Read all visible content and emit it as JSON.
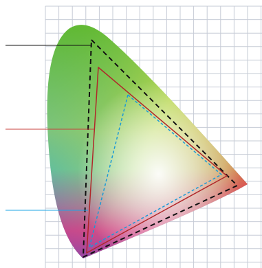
{
  "diagram": {
    "kind": "chromaticity-gamut-comparison",
    "gamuts": [
      {
        "id": "widest",
        "line_style": "dashed",
        "color": "#111111",
        "leader_color": "#111111"
      },
      {
        "id": "middle",
        "line_style": "solid",
        "color": "#b0272a",
        "leader_color": "#c8403e"
      },
      {
        "id": "narrow",
        "line_style": "dashed",
        "color": "#1a9ad6",
        "leader_color": "#1ea5e6"
      }
    ],
    "grid": {
      "visible": true,
      "color": "#c6cbd6"
    },
    "locus_colors": {
      "green": "#5fb82f",
      "yellow": "#f2ea3a",
      "red": "#e52532",
      "magenta": "#e0288a",
      "blue": "#3a4fc0",
      "cyan": "#2fb2e6"
    }
  }
}
